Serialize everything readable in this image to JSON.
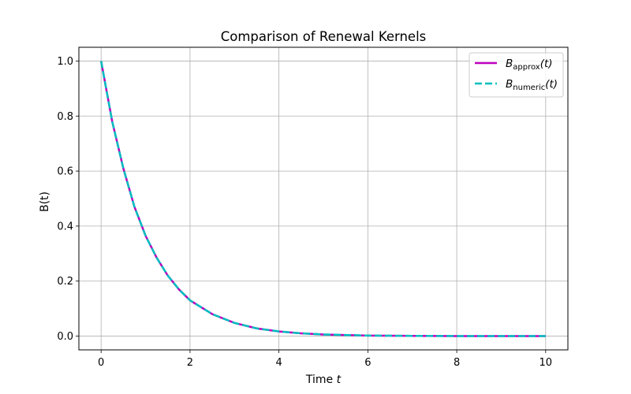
{
  "chart_data": {
    "type": "line",
    "title": "Comparison of Renewal Kernels",
    "xlabel": "Time",
    "xlabel_var": "t",
    "ylabel": "B(t)",
    "xlim": [
      -0.5,
      10.5
    ],
    "ylim": [
      -0.05,
      1.05
    ],
    "xticks": [
      0,
      2,
      4,
      6,
      8,
      10
    ],
    "xtick_labels": [
      "0",
      "2",
      "4",
      "6",
      "8",
      "10"
    ],
    "yticks": [
      0.0,
      0.2,
      0.4,
      0.6,
      0.8,
      1.0
    ],
    "ytick_labels": [
      "0.0",
      "0.2",
      "0.4",
      "0.6",
      "0.8",
      "1.0"
    ],
    "grid": true,
    "legend_position": "top-right",
    "x": [
      0,
      0.25,
      0.5,
      0.75,
      1,
      1.25,
      1.5,
      1.75,
      2,
      2.5,
      3,
      3.5,
      4,
      4.5,
      5,
      6,
      7,
      8,
      9,
      10
    ],
    "series": [
      {
        "name": "B_approx(t)",
        "label_main": "B",
        "label_sub": "approx",
        "label_arg": "(t)",
        "color": "#bf00bf",
        "style": "solid",
        "values": [
          1.0,
          0.78,
          0.61,
          0.47,
          0.365,
          0.285,
          0.22,
          0.17,
          0.13,
          0.08,
          0.048,
          0.028,
          0.017,
          0.01,
          0.006,
          0.002,
          0.001,
          0.0003,
          0.0001,
          0.0
        ]
      },
      {
        "name": "B_numeric(t)",
        "label_main": "B",
        "label_sub": "numeric",
        "label_arg": "(t)",
        "color": "#00bfbf",
        "style": "dashed",
        "values": [
          1.0,
          0.78,
          0.61,
          0.47,
          0.365,
          0.285,
          0.22,
          0.17,
          0.13,
          0.08,
          0.048,
          0.028,
          0.017,
          0.01,
          0.006,
          0.002,
          0.001,
          0.0003,
          0.0001,
          0.0
        ]
      }
    ]
  }
}
